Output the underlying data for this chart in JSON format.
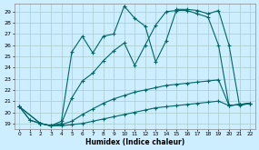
{
  "xlabel": "Humidex (Indice chaleur)",
  "bg_color": "#cceeff",
  "grid_color": "#aacccc",
  "line_color": "#006666",
  "xlim": [
    -0.5,
    22.5
  ],
  "ylim": [
    18.5,
    29.7
  ],
  "yticks": [
    19,
    20,
    21,
    22,
    23,
    24,
    25,
    26,
    27,
    28,
    29
  ],
  "xticks": [
    0,
    1,
    2,
    3,
    4,
    5,
    6,
    7,
    8,
    9,
    10,
    11,
    12,
    13,
    14,
    15,
    16,
    17,
    18,
    19,
    20,
    21,
    22
  ],
  "series": [
    {
      "x": [
        0,
        1,
        2,
        3,
        4,
        5,
        6,
        7,
        8,
        9,
        10,
        11,
        12,
        13,
        14,
        15,
        16,
        17,
        18,
        19,
        20,
        21,
        22
      ],
      "y": [
        20.5,
        19.3,
        19.0,
        18.8,
        18.8,
        18.9,
        19.0,
        19.2,
        19.4,
        19.6,
        19.8,
        20.0,
        20.2,
        20.4,
        20.5,
        20.6,
        20.7,
        20.8,
        20.9,
        21.0,
        20.6,
        20.7,
        20.8
      ]
    },
    {
      "x": [
        0,
        1,
        2,
        3,
        4,
        5,
        6,
        7,
        8,
        9,
        10,
        11,
        12,
        13,
        14,
        15,
        16,
        17,
        18,
        19,
        20,
        21,
        22
      ],
      "y": [
        20.5,
        19.3,
        19.0,
        18.8,
        18.9,
        19.2,
        19.8,
        20.3,
        20.8,
        21.2,
        21.5,
        21.8,
        22.0,
        22.2,
        22.4,
        22.5,
        22.6,
        22.7,
        22.8,
        22.9,
        20.6,
        20.7,
        20.8
      ]
    },
    {
      "x": [
        0,
        2,
        3,
        4,
        5,
        6,
        7,
        8,
        9,
        10,
        11,
        12,
        13,
        14,
        15,
        16,
        17,
        18,
        19,
        20,
        21,
        22
      ],
      "y": [
        20.5,
        19.0,
        18.8,
        19.0,
        21.3,
        22.8,
        23.5,
        24.6,
        25.5,
        26.2,
        24.2,
        26.0,
        27.8,
        29.0,
        29.1,
        29.1,
        28.8,
        28.5,
        26.0,
        20.6,
        20.7,
        20.8
      ]
    },
    {
      "x": [
        0,
        2,
        3,
        4,
        5,
        6,
        7,
        8,
        9,
        10,
        11,
        12,
        13,
        14,
        15,
        16,
        17,
        18,
        19,
        20,
        21,
        22
      ],
      "y": [
        20.5,
        19.0,
        18.8,
        19.2,
        25.4,
        26.8,
        25.3,
        26.8,
        27.0,
        29.5,
        28.4,
        27.7,
        24.5,
        26.4,
        29.2,
        29.2,
        29.1,
        28.8,
        29.1,
        26.0,
        20.6,
        20.8
      ]
    }
  ]
}
